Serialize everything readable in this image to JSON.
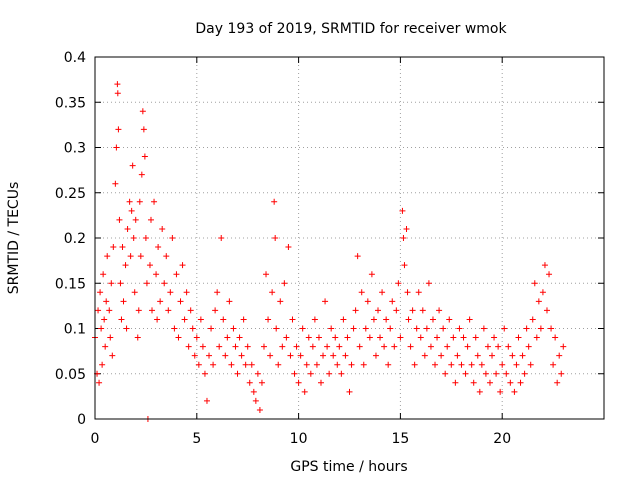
{
  "chart_data": {
    "type": "scatter",
    "title": "Day 193 of 2019, SRMTID for receiver wmok",
    "xlabel": "GPS time / hours",
    "ylabel": "SRMTID / TECUs",
    "xlim": [
      0,
      25
    ],
    "ylim": [
      0,
      0.4
    ],
    "x_ticks": [
      0,
      5,
      10,
      15,
      20
    ],
    "x_tick_labels": [
      "0",
      "5",
      "10",
      "15",
      "20"
    ],
    "y_ticks": [
      0,
      0.05,
      0.1,
      0.15,
      0.2,
      0.25,
      0.3,
      0.35,
      0.4
    ],
    "y_tick_labels": [
      "0",
      "0.05",
      "0.1",
      "0.15",
      "0.2",
      "0.25",
      "0.3",
      "0.35",
      "0.4"
    ],
    "grid": true,
    "marker": "plus",
    "marker_color": "#ff0000",
    "series": [
      {
        "name": "SRMTID",
        "points": [
          [
            0.0,
            0.09
          ],
          [
            0.1,
            0.05
          ],
          [
            0.15,
            0.12
          ],
          [
            0.2,
            0.04
          ],
          [
            0.25,
            0.14
          ],
          [
            0.3,
            0.1
          ],
          [
            0.35,
            0.06
          ],
          [
            0.4,
            0.16
          ],
          [
            0.45,
            0.11
          ],
          [
            0.5,
            0.08
          ],
          [
            0.55,
            0.13
          ],
          [
            0.6,
            0.18
          ],
          [
            0.7,
            0.12
          ],
          [
            0.75,
            0.09
          ],
          [
            0.8,
            0.15
          ],
          [
            0.85,
            0.07
          ],
          [
            0.9,
            0.19
          ],
          [
            1.0,
            0.26
          ],
          [
            1.05,
            0.3
          ],
          [
            1.1,
            0.37
          ],
          [
            1.12,
            0.36
          ],
          [
            1.15,
            0.32
          ],
          [
            1.2,
            0.22
          ],
          [
            1.25,
            0.15
          ],
          [
            1.3,
            0.11
          ],
          [
            1.35,
            0.19
          ],
          [
            1.4,
            0.13
          ],
          [
            1.5,
            0.17
          ],
          [
            1.55,
            0.1
          ],
          [
            1.6,
            0.21
          ],
          [
            1.7,
            0.24
          ],
          [
            1.75,
            0.18
          ],
          [
            1.8,
            0.23
          ],
          [
            1.85,
            0.28
          ],
          [
            1.9,
            0.2
          ],
          [
            1.95,
            0.14
          ],
          [
            2.0,
            0.22
          ],
          [
            2.1,
            0.09
          ],
          [
            2.15,
            0.12
          ],
          [
            2.2,
            0.24
          ],
          [
            2.25,
            0.18
          ],
          [
            2.3,
            0.27
          ],
          [
            2.35,
            0.34
          ],
          [
            2.4,
            0.32
          ],
          [
            2.45,
            0.29
          ],
          [
            2.5,
            0.2
          ],
          [
            2.55,
            0.15
          ],
          [
            2.6,
            0.0
          ],
          [
            2.7,
            0.17
          ],
          [
            2.75,
            0.22
          ],
          [
            2.8,
            0.12
          ],
          [
            2.9,
            0.24
          ],
          [
            3.0,
            0.16
          ],
          [
            3.05,
            0.11
          ],
          [
            3.1,
            0.19
          ],
          [
            3.2,
            0.13
          ],
          [
            3.3,
            0.21
          ],
          [
            3.4,
            0.15
          ],
          [
            3.5,
            0.18
          ],
          [
            3.6,
            0.12
          ],
          [
            3.7,
            0.14
          ],
          [
            3.8,
            0.2
          ],
          [
            3.9,
            0.1
          ],
          [
            4.0,
            0.16
          ],
          [
            4.1,
            0.09
          ],
          [
            4.2,
            0.13
          ],
          [
            4.3,
            0.17
          ],
          [
            4.4,
            0.11
          ],
          [
            4.5,
            0.14
          ],
          [
            4.6,
            0.08
          ],
          [
            4.7,
            0.12
          ],
          [
            4.8,
            0.1
          ],
          [
            4.9,
            0.07
          ],
          [
            5.0,
            0.09
          ],
          [
            5.1,
            0.06
          ],
          [
            5.2,
            0.11
          ],
          [
            5.3,
            0.08
          ],
          [
            5.4,
            0.05
          ],
          [
            5.5,
            0.02
          ],
          [
            5.6,
            0.07
          ],
          [
            5.7,
            0.1
          ],
          [
            5.8,
            0.06
          ],
          [
            5.9,
            0.12
          ],
          [
            6.0,
            0.14
          ],
          [
            6.1,
            0.08
          ],
          [
            6.2,
            0.2
          ],
          [
            6.3,
            0.11
          ],
          [
            6.4,
            0.07
          ],
          [
            6.5,
            0.09
          ],
          [
            6.6,
            0.13
          ],
          [
            6.7,
            0.06
          ],
          [
            6.8,
            0.1
          ],
          [
            6.9,
            0.08
          ],
          [
            7.0,
            0.05
          ],
          [
            7.1,
            0.09
          ],
          [
            7.2,
            0.07
          ],
          [
            7.3,
            0.11
          ],
          [
            7.4,
            0.06
          ],
          [
            7.5,
            0.08
          ],
          [
            7.6,
            0.04
          ],
          [
            7.7,
            0.06
          ],
          [
            7.8,
            0.03
          ],
          [
            7.9,
            0.02
          ],
          [
            8.0,
            0.05
          ],
          [
            8.1,
            0.01
          ],
          [
            8.2,
            0.04
          ],
          [
            8.3,
            0.08
          ],
          [
            8.4,
            0.16
          ],
          [
            8.5,
            0.11
          ],
          [
            8.6,
            0.07
          ],
          [
            8.7,
            0.14
          ],
          [
            8.8,
            0.24
          ],
          [
            8.85,
            0.2
          ],
          [
            8.9,
            0.1
          ],
          [
            9.0,
            0.06
          ],
          [
            9.1,
            0.13
          ],
          [
            9.2,
            0.08
          ],
          [
            9.3,
            0.15
          ],
          [
            9.4,
            0.09
          ],
          [
            9.5,
            0.19
          ],
          [
            9.6,
            0.07
          ],
          [
            9.7,
            0.11
          ],
          [
            9.8,
            0.05
          ],
          [
            9.9,
            0.08
          ],
          [
            10.0,
            0.04
          ],
          [
            10.1,
            0.07
          ],
          [
            10.2,
            0.1
          ],
          [
            10.3,
            0.03
          ],
          [
            10.4,
            0.06
          ],
          [
            10.5,
            0.09
          ],
          [
            10.6,
            0.05
          ],
          [
            10.7,
            0.08
          ],
          [
            10.8,
            0.11
          ],
          [
            10.9,
            0.06
          ],
          [
            11.0,
            0.09
          ],
          [
            11.1,
            0.04
          ],
          [
            11.2,
            0.07
          ],
          [
            11.3,
            0.13
          ],
          [
            11.4,
            0.08
          ],
          [
            11.5,
            0.05
          ],
          [
            11.6,
            0.1
          ],
          [
            11.7,
            0.07
          ],
          [
            11.8,
            0.09
          ],
          [
            11.9,
            0.06
          ],
          [
            12.0,
            0.08
          ],
          [
            12.1,
            0.05
          ],
          [
            12.2,
            0.11
          ],
          [
            12.3,
            0.07
          ],
          [
            12.4,
            0.09
          ],
          [
            12.5,
            0.03
          ],
          [
            12.6,
            0.06
          ],
          [
            12.7,
            0.1
          ],
          [
            12.8,
            0.12
          ],
          [
            12.9,
            0.18
          ],
          [
            13.0,
            0.08
          ],
          [
            13.1,
            0.14
          ],
          [
            13.2,
            0.06
          ],
          [
            13.3,
            0.1
          ],
          [
            13.4,
            0.13
          ],
          [
            13.5,
            0.09
          ],
          [
            13.6,
            0.16
          ],
          [
            13.7,
            0.11
          ],
          [
            13.8,
            0.07
          ],
          [
            13.9,
            0.12
          ],
          [
            14.0,
            0.09
          ],
          [
            14.1,
            0.14
          ],
          [
            14.2,
            0.08
          ],
          [
            14.3,
            0.11
          ],
          [
            14.4,
            0.06
          ],
          [
            14.5,
            0.1
          ],
          [
            14.6,
            0.13
          ],
          [
            14.7,
            0.08
          ],
          [
            14.8,
            0.12
          ],
          [
            14.9,
            0.15
          ],
          [
            15.0,
            0.09
          ],
          [
            15.1,
            0.23
          ],
          [
            15.15,
            0.2
          ],
          [
            15.2,
            0.17
          ],
          [
            15.3,
            0.21
          ],
          [
            15.35,
            0.14
          ],
          [
            15.4,
            0.11
          ],
          [
            15.5,
            0.08
          ],
          [
            15.6,
            0.12
          ],
          [
            15.7,
            0.06
          ],
          [
            15.8,
            0.1
          ],
          [
            15.9,
            0.14
          ],
          [
            16.0,
            0.09
          ],
          [
            16.1,
            0.12
          ],
          [
            16.2,
            0.07
          ],
          [
            16.3,
            0.1
          ],
          [
            16.4,
            0.15
          ],
          [
            16.5,
            0.08
          ],
          [
            16.6,
            0.11
          ],
          [
            16.7,
            0.06
          ],
          [
            16.8,
            0.09
          ],
          [
            16.9,
            0.12
          ],
          [
            17.0,
            0.07
          ],
          [
            17.1,
            0.1
          ],
          [
            17.2,
            0.05
          ],
          [
            17.3,
            0.08
          ],
          [
            17.4,
            0.11
          ],
          [
            17.5,
            0.06
          ],
          [
            17.6,
            0.09
          ],
          [
            17.7,
            0.04
          ],
          [
            17.8,
            0.07
          ],
          [
            17.9,
            0.1
          ],
          [
            18.0,
            0.06
          ],
          [
            18.1,
            0.09
          ],
          [
            18.2,
            0.05
          ],
          [
            18.3,
            0.08
          ],
          [
            18.4,
            0.11
          ],
          [
            18.5,
            0.06
          ],
          [
            18.6,
            0.04
          ],
          [
            18.7,
            0.09
          ],
          [
            18.8,
            0.07
          ],
          [
            18.9,
            0.03
          ],
          [
            19.0,
            0.06
          ],
          [
            19.1,
            0.1
          ],
          [
            19.2,
            0.05
          ],
          [
            19.3,
            0.08
          ],
          [
            19.4,
            0.04
          ],
          [
            19.5,
            0.07
          ],
          [
            19.6,
            0.09
          ],
          [
            19.7,
            0.05
          ],
          [
            19.8,
            0.08
          ],
          [
            19.9,
            0.03
          ],
          [
            20.0,
            0.06
          ],
          [
            20.1,
            0.1
          ],
          [
            20.2,
            0.05
          ],
          [
            20.3,
            0.08
          ],
          [
            20.4,
            0.04
          ],
          [
            20.5,
            0.07
          ],
          [
            20.6,
            0.03
          ],
          [
            20.7,
            0.06
          ],
          [
            20.8,
            0.09
          ],
          [
            20.9,
            0.04
          ],
          [
            21.0,
            0.07
          ],
          [
            21.1,
            0.05
          ],
          [
            21.2,
            0.1
          ],
          [
            21.3,
            0.08
          ],
          [
            21.4,
            0.06
          ],
          [
            21.5,
            0.11
          ],
          [
            21.6,
            0.15
          ],
          [
            21.7,
            0.09
          ],
          [
            21.8,
            0.13
          ],
          [
            21.9,
            0.1
          ],
          [
            22.0,
            0.14
          ],
          [
            22.1,
            0.17
          ],
          [
            22.2,
            0.12
          ],
          [
            22.3,
            0.16
          ],
          [
            22.4,
            0.1
          ],
          [
            22.5,
            0.06
          ],
          [
            22.6,
            0.09
          ],
          [
            22.7,
            0.04
          ],
          [
            22.8,
            0.07
          ],
          [
            22.9,
            0.05
          ],
          [
            23.0,
            0.08
          ]
        ]
      }
    ]
  }
}
